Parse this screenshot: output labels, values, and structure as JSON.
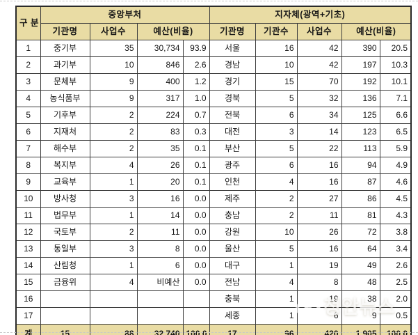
{
  "chart_data": {
    "type": "table",
    "header": {
      "corner": "구 분",
      "central_group": "중앙부처",
      "local_group": "지자체(광역+기초)",
      "central_cols": [
        "기관명",
        "사업수",
        "예산(비율)"
      ],
      "local_cols": [
        "기관명",
        "기관수",
        "사업수",
        "예산(비율)"
      ]
    },
    "rows": [
      {
        "no": "1",
        "c_name": "중기부",
        "c_biz": "35",
        "c_budget": "30,734",
        "c_ratio": "93.9",
        "l_name": "서울",
        "l_org": "16",
        "l_biz": "42",
        "l_budget": "390",
        "l_ratio": "20.5"
      },
      {
        "no": "2",
        "c_name": "과기부",
        "c_biz": "10",
        "c_budget": "846",
        "c_ratio": "2.6",
        "l_name": "경남",
        "l_org": "10",
        "l_biz": "42",
        "l_budget": "197",
        "l_ratio": "10.3"
      },
      {
        "no": "3",
        "c_name": "문체부",
        "c_biz": "9",
        "c_budget": "400",
        "c_ratio": "1.2",
        "l_name": "경기",
        "l_org": "15",
        "l_biz": "70",
        "l_budget": "192",
        "l_ratio": "10.1"
      },
      {
        "no": "4",
        "c_name": "농식품부",
        "c_biz": "9",
        "c_budget": "317",
        "c_ratio": "1.0",
        "l_name": "경북",
        "l_org": "5",
        "l_biz": "32",
        "l_budget": "136",
        "l_ratio": "7.1"
      },
      {
        "no": "5",
        "c_name": "기후부",
        "c_biz": "2",
        "c_budget": "224",
        "c_ratio": "0.7",
        "l_name": "전북",
        "l_org": "6",
        "l_biz": "34",
        "l_budget": "125",
        "l_ratio": "6.6"
      },
      {
        "no": "6",
        "c_name": "지재처",
        "c_biz": "2",
        "c_budget": "83",
        "c_ratio": "0.3",
        "l_name": "대전",
        "l_org": "3",
        "l_biz": "14",
        "l_budget": "123",
        "l_ratio": "6.5"
      },
      {
        "no": "7",
        "c_name": "해수부",
        "c_biz": "2",
        "c_budget": "35",
        "c_ratio": "0.1",
        "l_name": "부산",
        "l_org": "5",
        "l_biz": "22",
        "l_budget": "113",
        "l_ratio": "5.9"
      },
      {
        "no": "8",
        "c_name": "복지부",
        "c_biz": "4",
        "c_budget": "26",
        "c_ratio": "0.1",
        "l_name": "광주",
        "l_org": "6",
        "l_biz": "16",
        "l_budget": "94",
        "l_ratio": "4.9"
      },
      {
        "no": "9",
        "c_name": "교육부",
        "c_biz": "1",
        "c_budget": "20",
        "c_ratio": "0.1",
        "l_name": "인천",
        "l_org": "4",
        "l_biz": "16",
        "l_budget": "87",
        "l_ratio": "4.6"
      },
      {
        "no": "10",
        "c_name": "방사청",
        "c_biz": "3",
        "c_budget": "16",
        "c_ratio": "0.0",
        "l_name": "제주",
        "l_org": "2",
        "l_biz": "27",
        "l_budget": "86",
        "l_ratio": "4.5"
      },
      {
        "no": "11",
        "c_name": "법무부",
        "c_biz": "1",
        "c_budget": "14",
        "c_ratio": "0.0",
        "l_name": "충남",
        "l_org": "2",
        "l_biz": "11",
        "l_budget": "81",
        "l_ratio": "4.3"
      },
      {
        "no": "12",
        "c_name": "국토부",
        "c_biz": "2",
        "c_budget": "11",
        "c_ratio": "0.0",
        "l_name": "강원",
        "l_org": "10",
        "l_biz": "26",
        "l_budget": "72",
        "l_ratio": "3.8"
      },
      {
        "no": "13",
        "c_name": "통일부",
        "c_biz": "3",
        "c_budget": "8",
        "c_ratio": "0.0",
        "l_name": "울산",
        "l_org": "5",
        "l_biz": "16",
        "l_budget": "64",
        "l_ratio": "3.4"
      },
      {
        "no": "14",
        "c_name": "산림청",
        "c_biz": "1",
        "c_budget": "6",
        "c_ratio": "0.0",
        "l_name": "대구",
        "l_org": "1",
        "l_biz": "19",
        "l_budget": "49",
        "l_ratio": "2.6"
      },
      {
        "no": "15",
        "c_name": "금융위",
        "c_biz": "4",
        "c_budget": "비예산",
        "c_ratio": "0.0",
        "c_ratio_muted": true,
        "l_name": "전남",
        "l_org": "4",
        "l_biz": "8",
        "l_budget": "48",
        "l_ratio": "2.5"
      },
      {
        "no": "16",
        "c_name": "",
        "c_biz": "",
        "c_budget": "",
        "c_ratio": "",
        "l_name": "충북",
        "l_org": "1",
        "l_biz": "19",
        "l_budget": "38",
        "l_ratio": "2.0"
      },
      {
        "no": "17",
        "c_name": "",
        "c_biz": "",
        "c_budget": "",
        "c_ratio": "",
        "l_name": "세종",
        "l_org": "1",
        "l_biz": "6",
        "l_budget": "9",
        "l_ratio": "0.5"
      }
    ],
    "total": {
      "no": "계",
      "c_name": "15",
      "c_biz": "88",
      "c_budget": "32,740",
      "c_ratio": "100.0",
      "l_name": "17",
      "l_org": "96",
      "l_biz": "420",
      "l_budget": "1,905",
      "l_ratio": "100.0"
    }
  },
  "watermark": {
    "text": "청안뉴스"
  },
  "colors": {
    "header_bg": "#e9dca4",
    "border": "#3c3c3c",
    "muted_text": "#9b9b9b",
    "watermark_text": "rgba(255,255,255,0.78)"
  }
}
